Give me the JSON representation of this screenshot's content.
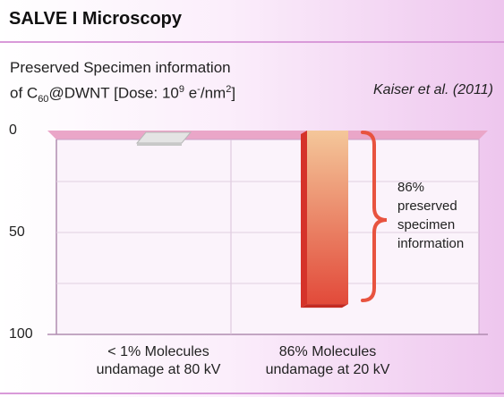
{
  "title": "SALVE I Microscopy",
  "subtitle_line1": "Preserved Specimen information",
  "subtitle_line2": {
    "pre": "of C",
    "sub": "60",
    "mid": "@DWNT [Dose: 10",
    "sup1": "9",
    "mid2": " e",
    "sup2": "-",
    "post": "/nm",
    "sup3": "2",
    "end": "]"
  },
  "citation": "Kaiser et al. (2011)",
  "colors": {
    "bar_top": "#f4c79a",
    "bar_bottom": "#e24a3a",
    "bar_side": "#d5332a",
    "brace": "#e8533f",
    "floor": "#eaa6c8"
  },
  "chart_data": {
    "type": "bar",
    "categories": [
      [
        "< 1% Molecules",
        "undamage at 80 kV"
      ],
      [
        "86% Molecules",
        "undamage at 20 kV"
      ]
    ],
    "values": [
      1,
      86
    ],
    "y_axis": {
      "ticks": [
        "0",
        "50",
        "100"
      ],
      "range": [
        0,
        100
      ],
      "inverted": true
    },
    "annotation": [
      "86%",
      "preserved",
      "specimen",
      "information"
    ]
  }
}
